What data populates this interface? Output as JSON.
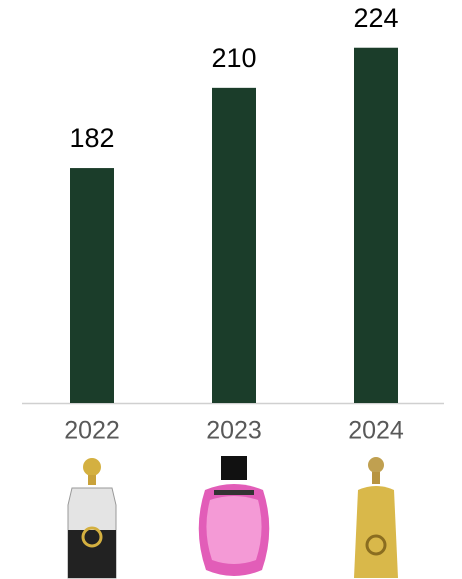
{
  "chart_data": {
    "type": "bar",
    "categories": [
      "2022",
      "2023",
      "2024"
    ],
    "values": [
      182,
      210,
      224
    ],
    "color": "#1b3d2a",
    "ylim": [
      100,
      226
    ]
  }
}
